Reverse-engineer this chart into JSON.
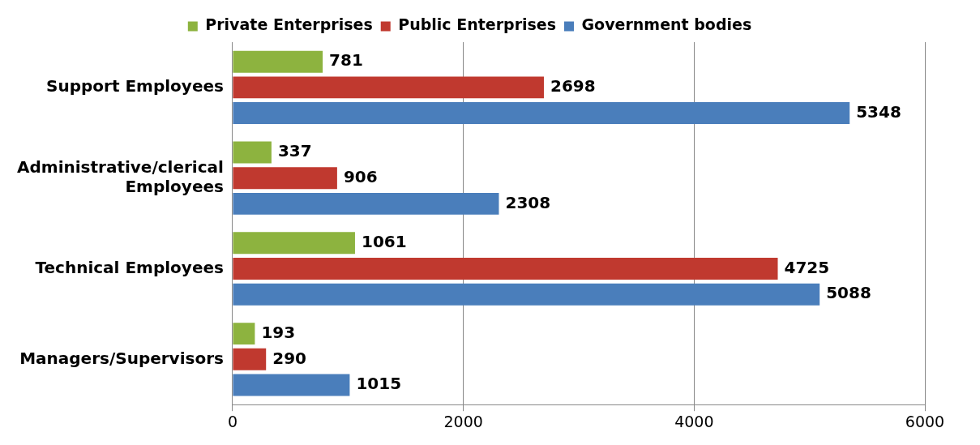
{
  "chart_data": {
    "type": "bar",
    "orientation": "horizontal",
    "categories": [
      "Support Employees",
      "Administrative/clerical Employees",
      "Technical Employees",
      "Managers/Supervisors"
    ],
    "series": [
      {
        "name": "Private Enterprises",
        "color": "#8db33f",
        "values": [
          781,
          337,
          1061,
          193
        ]
      },
      {
        "name": "Public Enterprises",
        "color": "#c0392f",
        "values": [
          2698,
          906,
          4725,
          290
        ]
      },
      {
        "name": "Government bodies",
        "color": "#4a7ebb",
        "values": [
          5348,
          2308,
          5088,
          1015
        ]
      }
    ],
    "xlim": [
      0,
      6000
    ],
    "xticks": [
      0,
      2000,
      4000,
      6000
    ],
    "grid": "x",
    "legend": "top",
    "data_labels": true
  }
}
